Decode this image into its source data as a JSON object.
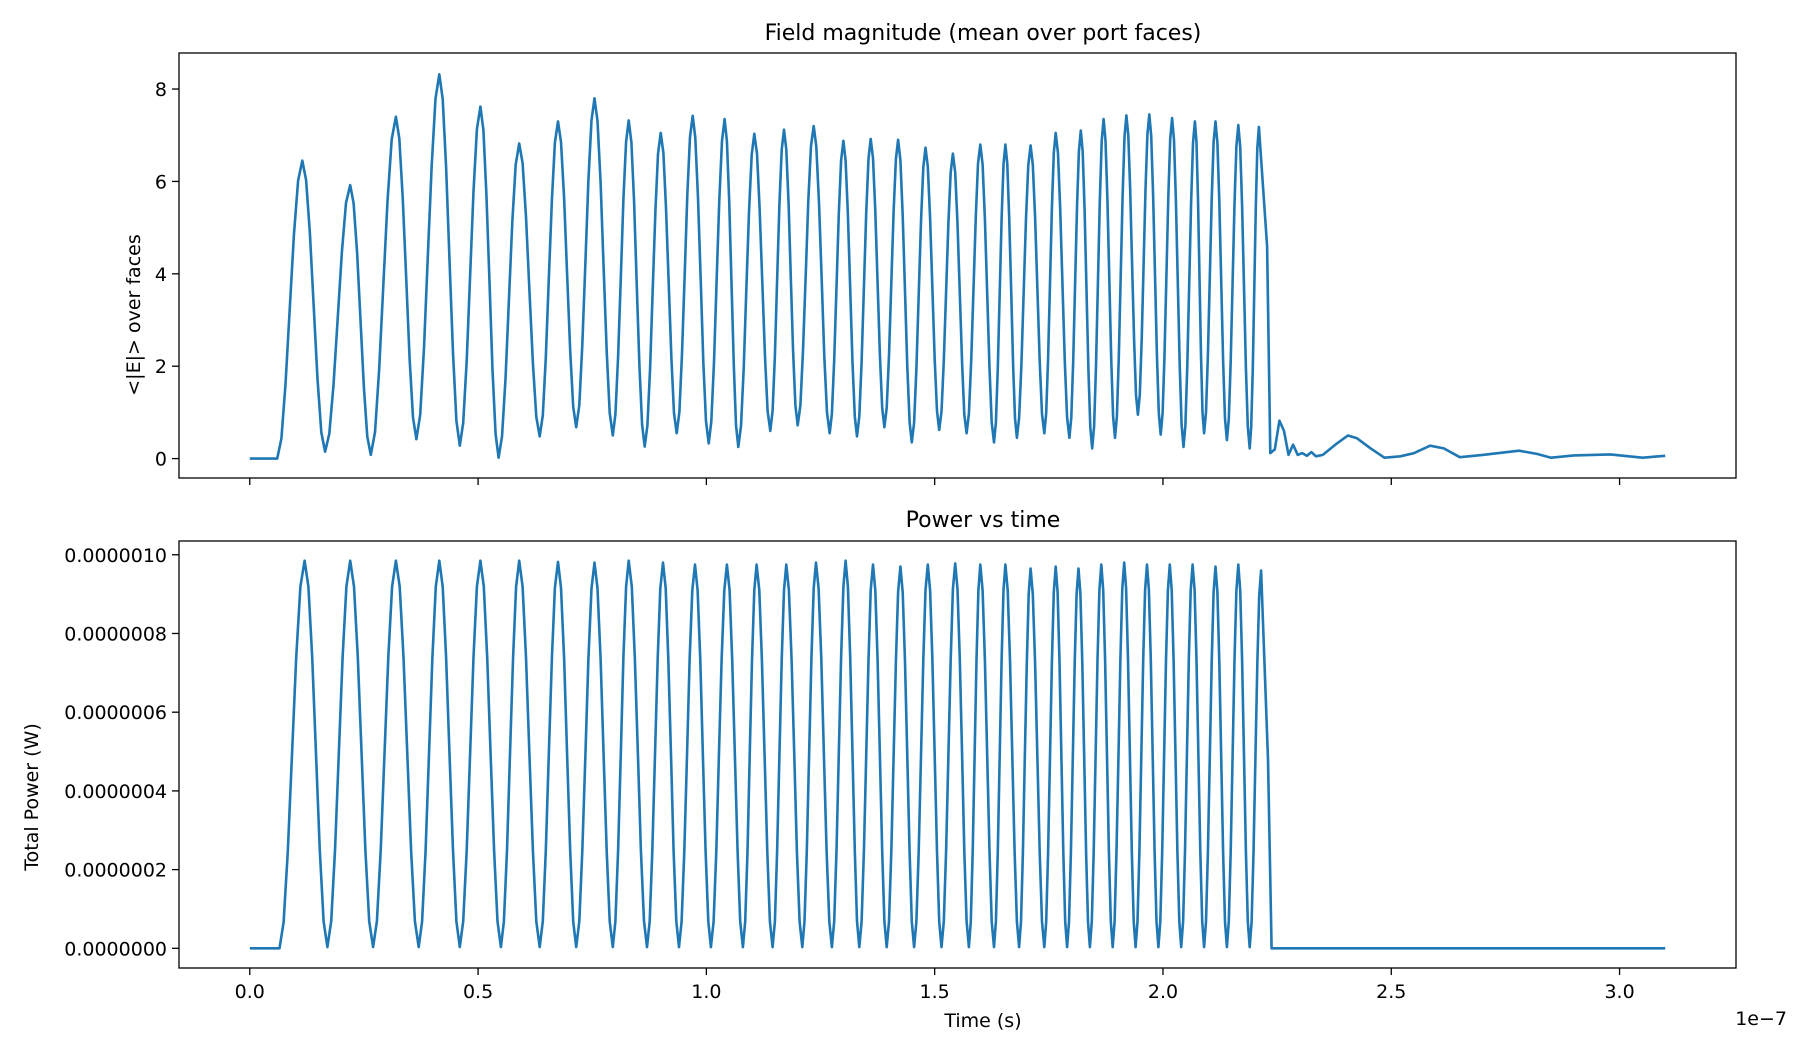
{
  "chart_data": [
    {
      "type": "line",
      "title": "Field magnitude (mean over port faces)",
      "xlabel": "",
      "ylabel": "<|E|> over faces",
      "xlim": [
        -1.55e-08,
        3.255e-07
      ],
      "ylim": [
        -0.42,
        8.78
      ],
      "x_ticks": [
        0,
        5e-08,
        1e-07,
        1.5e-07,
        2e-07,
        2.5e-07,
        3e-07
      ],
      "x_tick_labels_shown": false,
      "y_ticks": [
        0,
        2,
        4,
        6,
        8
      ],
      "y_tick_labels": [
        "0",
        "2",
        "4",
        "6",
        "8"
      ],
      "grid": false,
      "series": [
        {
          "color": "#1f77b4",
          "model": "piecewise_signal",
          "zero_until": 6e-09,
          "drive_end": 2.23e-07,
          "peaks": [
            [
              1.15e-08,
              6.45
            ],
            [
              2.2e-08,
              5.92
            ],
            [
              3.2e-08,
              7.4
            ],
            [
              4.15e-08,
              8.32
            ],
            [
              5.05e-08,
              7.62
            ],
            [
              5.9e-08,
              6.82
            ],
            [
              6.75e-08,
              7.3
            ],
            [
              7.55e-08,
              7.8
            ],
            [
              8.3e-08,
              7.32
            ],
            [
              9e-08,
              7.05
            ],
            [
              9.7e-08,
              7.42
            ],
            [
              1.04e-07,
              7.35
            ],
            [
              1.105e-07,
              7.03
            ],
            [
              1.17e-07,
              7.12
            ],
            [
              1.235e-07,
              7.2
            ],
            [
              1.3e-07,
              6.88
            ],
            [
              1.36e-07,
              6.92
            ],
            [
              1.42e-07,
              6.9
            ],
            [
              1.48e-07,
              6.73
            ],
            [
              1.54e-07,
              6.6
            ],
            [
              1.6e-07,
              6.8
            ],
            [
              1.655e-07,
              6.8
            ],
            [
              1.71e-07,
              6.78
            ],
            [
              1.765e-07,
              7.05
            ],
            [
              1.82e-07,
              7.1
            ],
            [
              1.87e-07,
              7.35
            ],
            [
              1.92e-07,
              7.43
            ],
            [
              1.97e-07,
              7.45
            ],
            [
              2.02e-07,
              7.37
            ],
            [
              2.07e-07,
              7.3
            ],
            [
              2.115e-07,
              7.3
            ],
            [
              2.165e-07,
              7.22
            ],
            [
              2.21e-07,
              7.18
            ]
          ],
          "troughs": [
            [
              1.65e-08,
              0.15
            ],
            [
              2.65e-08,
              0.08
            ],
            [
              3.65e-08,
              0.42
            ],
            [
              4.6e-08,
              0.28
            ],
            [
              5.45e-08,
              0.02
            ],
            [
              6.35e-08,
              0.48
            ],
            [
              7.15e-08,
              0.68
            ],
            [
              7.95e-08,
              0.5
            ],
            [
              8.65e-08,
              0.26
            ],
            [
              9.35e-08,
              0.55
            ],
            [
              1.005e-07,
              0.33
            ],
            [
              1.07e-07,
              0.25
            ],
            [
              1.14e-07,
              0.6
            ],
            [
              1.2e-07,
              0.72
            ],
            [
              1.27e-07,
              0.55
            ],
            [
              1.33e-07,
              0.48
            ],
            [
              1.39e-07,
              0.68
            ],
            [
              1.45e-07,
              0.35
            ],
            [
              1.51e-07,
              0.62
            ],
            [
              1.57e-07,
              0.55
            ],
            [
              1.63e-07,
              0.35
            ],
            [
              1.68e-07,
              0.45
            ],
            [
              1.74e-07,
              0.55
            ],
            [
              1.795e-07,
              0.45
            ],
            [
              1.845e-07,
              0.22
            ],
            [
              1.895e-07,
              0.45
            ],
            [
              1.945e-07,
              0.95
            ],
            [
              1.995e-07,
              0.52
            ],
            [
              2.045e-07,
              0.25
            ],
            [
              2.09e-07,
              0.55
            ],
            [
              2.14e-07,
              0.4
            ],
            [
              2.19e-07,
              0.22
            ]
          ],
          "ringdown": [
            [
              2.228e-07,
              4.6
            ],
            [
              2.235e-07,
              0.12
            ],
            [
              2.245e-07,
              0.2
            ],
            [
              2.255e-07,
              0.82
            ],
            [
              2.265e-07,
              0.6
            ],
            [
              2.275e-07,
              0.08
            ],
            [
              2.285e-07,
              0.3
            ],
            [
              2.295e-07,
              0.08
            ],
            [
              2.305e-07,
              0.12
            ],
            [
              2.315e-07,
              0.06
            ],
            [
              2.325e-07,
              0.14
            ],
            [
              2.335e-07,
              0.05
            ],
            [
              2.35e-07,
              0.08
            ],
            [
              2.38e-07,
              0.32
            ],
            [
              2.405e-07,
              0.5
            ],
            [
              2.425e-07,
              0.44
            ],
            [
              2.455e-07,
              0.22
            ],
            [
              2.485e-07,
              0.02
            ],
            [
              2.52e-07,
              0.05
            ],
            [
              2.55e-07,
              0.12
            ],
            [
              2.585e-07,
              0.28
            ],
            [
              2.615e-07,
              0.22
            ],
            [
              2.65e-07,
              0.03
            ],
            [
              2.7e-07,
              0.08
            ],
            [
              2.78e-07,
              0.17
            ],
            [
              2.82e-07,
              0.1
            ],
            [
              2.85e-07,
              0.02
            ],
            [
              2.9e-07,
              0.07
            ],
            [
              2.98e-07,
              0.09
            ],
            [
              3.05e-07,
              0.02
            ],
            [
              3.1e-07,
              0.06
            ]
          ]
        }
      ]
    },
    {
      "type": "line",
      "title": "Power vs time",
      "xlabel": "Time (s)",
      "ylabel": "Total Power (W)",
      "xlim": [
        -1.55e-08,
        3.255e-07
      ],
      "ylim": [
        -5e-08,
        1.035e-06
      ],
      "x_ticks": [
        0,
        5e-08,
        1e-07,
        1.5e-07,
        2e-07,
        2.5e-07,
        3e-07
      ],
      "x_tick_labels": [
        "0.0",
        "0.5",
        "1.0",
        "1.5",
        "2.0",
        "2.5",
        "3.0"
      ],
      "x_offset_label": "1e−7",
      "y_ticks": [
        0,
        2e-07,
        4e-07,
        6e-07,
        8e-07,
        1e-06
      ],
      "y_tick_labels": [
        "0.0000000",
        "0.0000002",
        "0.0000004",
        "0.0000006",
        "0.0000008",
        "0.0000010"
      ],
      "grid": false,
      "series": [
        {
          "color": "#1f77b4",
          "model": "piecewise_signal",
          "zero_until": 6.5e-09,
          "drive_end": 2.23e-07,
          "tail": [
            [
              2.238e-07,
              0
            ],
            [
              3.1e-07,
              0
            ]
          ],
          "peaks": [
            [
              1.2e-08,
              9.85e-07
            ],
            [
              2.2e-08,
              9.85e-07
            ],
            [
              3.2e-08,
              9.85e-07
            ],
            [
              4.15e-08,
              9.85e-07
            ],
            [
              5.05e-08,
              9.85e-07
            ],
            [
              5.9e-08,
              9.85e-07
            ],
            [
              6.75e-08,
              9.82e-07
            ],
            [
              7.55e-08,
              9.8e-07
            ],
            [
              8.3e-08,
              9.85e-07
            ],
            [
              9.05e-08,
              9.8e-07
            ],
            [
              9.75e-08,
              9.75e-07
            ],
            [
              1.045e-07,
              9.75e-07
            ],
            [
              1.11e-07,
              9.75e-07
            ],
            [
              1.175e-07,
              9.75e-07
            ],
            [
              1.24e-07,
              9.8e-07
            ],
            [
              1.305e-07,
              9.85e-07
            ],
            [
              1.365e-07,
              9.75e-07
            ],
            [
              1.425e-07,
              9.7e-07
            ],
            [
              1.485e-07,
              9.75e-07
            ],
            [
              1.545e-07,
              9.78e-07
            ],
            [
              1.6e-07,
              9.75e-07
            ],
            [
              1.655e-07,
              9.75e-07
            ],
            [
              1.71e-07,
              9.65e-07
            ],
            [
              1.765e-07,
              9.7e-07
            ],
            [
              1.815e-07,
              9.65e-07
            ],
            [
              1.865e-07,
              9.75e-07
            ],
            [
              1.915e-07,
              9.8e-07
            ],
            [
              1.965e-07,
              9.75e-07
            ],
            [
              2.015e-07,
              9.75e-07
            ],
            [
              2.065e-07,
              9.75e-07
            ],
            [
              2.115e-07,
              9.7e-07
            ],
            [
              2.165e-07,
              9.75e-07
            ],
            [
              2.215e-07,
              9.6e-07
            ]
          ],
          "troughs": [
            [
              1.7e-08,
              3e-09
            ],
            [
              2.7e-08,
              3e-09
            ],
            [
              3.7e-08,
              3e-09
            ],
            [
              4.6e-08,
              3e-09
            ],
            [
              5.5e-08,
              3e-09
            ],
            [
              6.35e-08,
              3e-09
            ],
            [
              7.15e-08,
              3e-09
            ],
            [
              7.95e-08,
              3e-09
            ],
            [
              8.7e-08,
              3e-09
            ],
            [
              9.4e-08,
              3e-09
            ],
            [
              1.01e-07,
              3e-09
            ],
            [
              1.08e-07,
              3e-09
            ],
            [
              1.145e-07,
              3e-09
            ],
            [
              1.21e-07,
              3e-09
            ],
            [
              1.275e-07,
              3e-09
            ],
            [
              1.335e-07,
              3e-09
            ],
            [
              1.395e-07,
              3e-09
            ],
            [
              1.455e-07,
              3e-09
            ],
            [
              1.515e-07,
              3e-09
            ],
            [
              1.575e-07,
              3e-09
            ],
            [
              1.63e-07,
              3e-09
            ],
            [
              1.685e-07,
              3e-09
            ],
            [
              1.74e-07,
              3e-09
            ],
            [
              1.79e-07,
              3e-09
            ],
            [
              1.84e-07,
              3e-09
            ],
            [
              1.89e-07,
              3e-09
            ],
            [
              1.94e-07,
              3e-09
            ],
            [
              1.99e-07,
              3e-09
            ],
            [
              2.04e-07,
              3e-09
            ],
            [
              2.09e-07,
              3e-09
            ],
            [
              2.14e-07,
              3e-09
            ],
            [
              2.19e-07,
              3e-09
            ]
          ]
        }
      ]
    }
  ]
}
